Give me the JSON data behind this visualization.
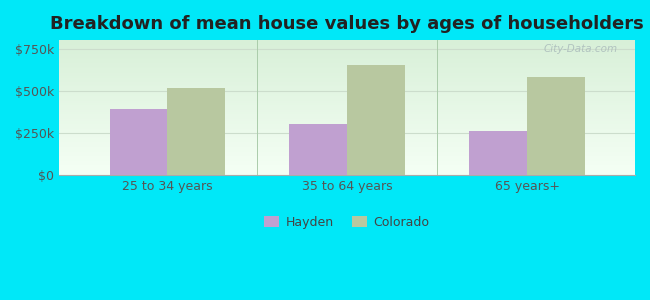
{
  "title": "Breakdown of mean house values by ages of householders",
  "categories": [
    "25 to 34 years",
    "35 to 64 years",
    "65 years+"
  ],
  "hayden_values": [
    390000,
    300000,
    260000
  ],
  "colorado_values": [
    515000,
    655000,
    580000
  ],
  "hayden_color": "#c0a0d0",
  "colorado_color": "#b8c8a0",
  "background_outer": "#00e8f8",
  "background_inner_top": "#f5fff5",
  "background_inner_bottom": "#d8f0d8",
  "ylabel_ticks": [
    0,
    250000,
    500000,
    750000
  ],
  "ylabel_labels": [
    "$0",
    "$250k",
    "$500k",
    "$750k"
  ],
  "ylim": [
    0,
    800000
  ],
  "bar_width": 0.32,
  "legend_hayden": "Hayden",
  "legend_colorado": "Colorado",
  "title_fontsize": 13,
  "tick_fontsize": 9,
  "legend_fontsize": 9,
  "watermark_text": "City-Data.com",
  "grid_color": "#ccddcc",
  "spine_color": "#aaaaaa"
}
